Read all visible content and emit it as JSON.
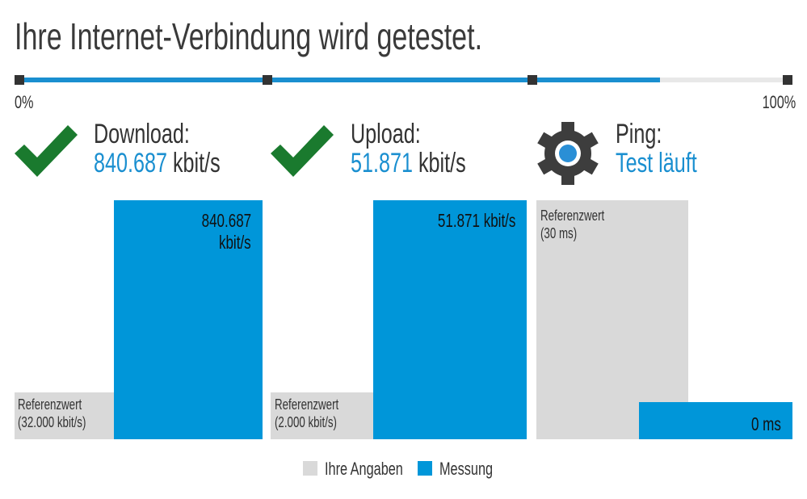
{
  "title": "Ihre Internet-Verbindung wird getestet.",
  "progress": {
    "value": 0.834,
    "start_label": "0%",
    "end_label": "100%"
  },
  "tests": [
    {
      "name": "Download:",
      "status": "done",
      "icon": "checkmark-icon",
      "value": "840.687",
      "unit": "kbit/s",
      "bar_label": [
        "840.687",
        "kbit/s"
      ],
      "reference": [
        "Referenzwert",
        "(32.000 kbit/s)"
      ]
    },
    {
      "name": "Upload:",
      "status": "done",
      "icon": "checkmark-icon",
      "value": "51.871",
      "unit": "kbit/s",
      "bar_label": [
        "51.871 kbit/s"
      ],
      "reference": [
        "Referenzwert",
        "(2.000 kbit/s)"
      ]
    },
    {
      "name": "Ping:",
      "status": "running",
      "icon": "gear-icon",
      "value": "Test läuft",
      "bar_label": [
        "0 ms"
      ],
      "reference": [
        "Referenzwert",
        "(30 ms)"
      ]
    }
  ],
  "legend": [
    {
      "label": "Ihre Angaben",
      "color": "#d9d9d9"
    },
    {
      "label": "Messung",
      "color": "#0096d9"
    }
  ],
  "colors": {
    "accent": "#0096d9",
    "success": "#1a7a2e",
    "gear": "#3d3d3d"
  }
}
